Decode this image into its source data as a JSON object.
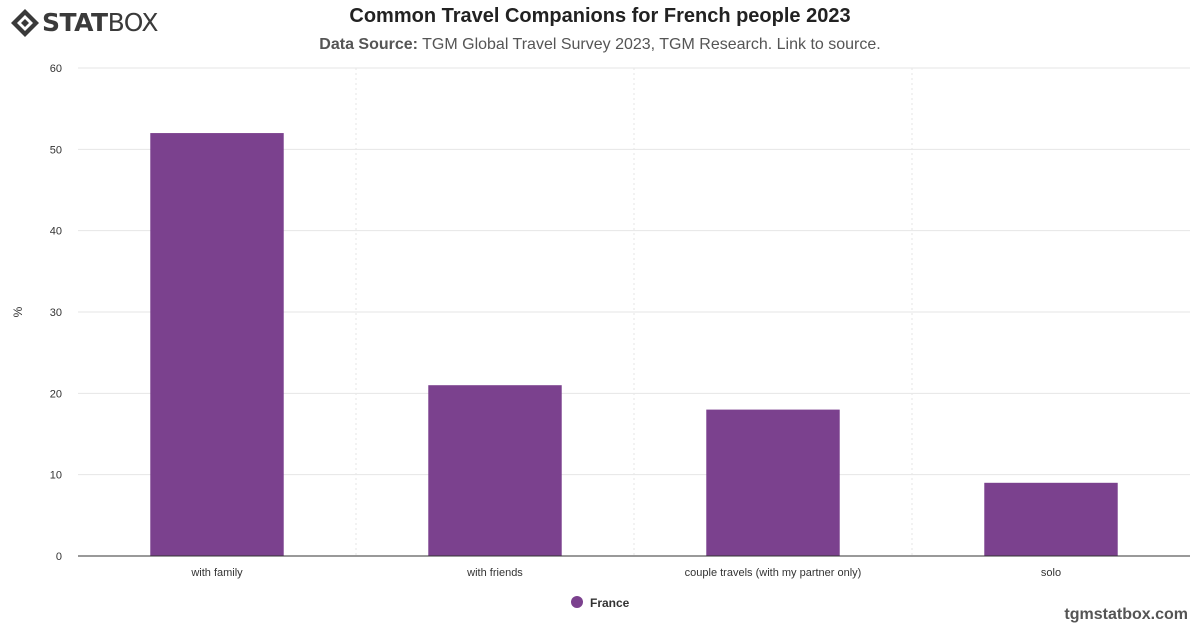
{
  "brand": {
    "logo_text_bold": "STAT",
    "logo_text_light": "BOX",
    "footer_url": "tgmstatbox.com"
  },
  "header": {
    "title": "Common Travel Companions for French people 2023",
    "subtitle_label": "Data Source:",
    "subtitle_text": " TGM Global Travel Survey 2023, TGM Research. Link to source."
  },
  "colors": {
    "bar": "#7b418e",
    "grid": "#e6e6e6",
    "axis": "#333333",
    "text": "#333333"
  },
  "chart_data": {
    "type": "bar",
    "title": "Common Travel Companions for French people 2023",
    "categories": [
      "with family",
      "with friends",
      "couple travels (with my partner only)",
      "solo"
    ],
    "series": [
      {
        "name": "France",
        "values": [
          52,
          21,
          18,
          9
        ]
      }
    ],
    "ylabel": "%",
    "ylim": [
      0,
      60
    ],
    "yticks": [
      0,
      10,
      20,
      30,
      40,
      50,
      60
    ],
    "grid": true,
    "legend": "bottom-center"
  }
}
